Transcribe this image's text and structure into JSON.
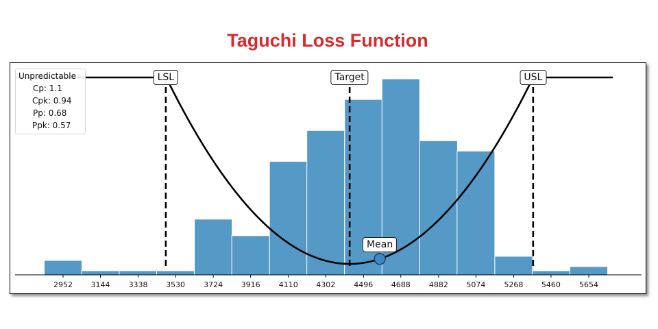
{
  "title": "Taguchi Loss Function",
  "colors": {
    "title": "#d52b2b",
    "bar": "#5599c7",
    "bar_edge": "#ffffff",
    "curve": "#000000"
  },
  "legend": {
    "header": "Unpredictable",
    "rows": [
      "Cp: 1.1",
      "Cpk: 0.94",
      "Pp: 0.68",
      "Ppk: 0.57"
    ]
  },
  "chart_data": {
    "type": "bar",
    "bin_width": 194,
    "categories": [
      "2952",
      "3144",
      "3338",
      "3530",
      "3724",
      "3916",
      "4110",
      "4302",
      "4496",
      "4688",
      "4882",
      "5074",
      "5268",
      "5460",
      "5654"
    ],
    "x": [
      2952,
      3144,
      3338,
      3530,
      3724,
      3916,
      4110,
      4302,
      4496,
      4688,
      4882,
      5074,
      5268,
      5460,
      5654
    ],
    "values": [
      7,
      2,
      2,
      2,
      27,
      19,
      55,
      70,
      85,
      95,
      65,
      60,
      9,
      2,
      4
    ],
    "ylim": [
      0,
      100
    ],
    "lsl": 3480,
    "target": 4425,
    "usl": 5368,
    "mean": 4580,
    "tolerance_line_height": 95,
    "reference_labels": {
      "lsl": "LSL",
      "target": "Target",
      "usl": "USL",
      "mean": "Mean"
    }
  }
}
